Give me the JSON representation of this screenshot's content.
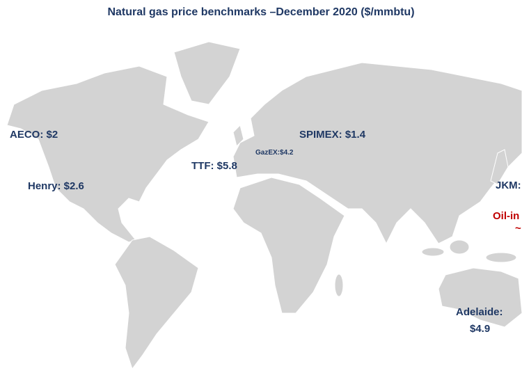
{
  "title": "Natural gas price benchmarks –December 2020 ($/mmbtu)",
  "labels": [
    "AECO: $2",
    "Henry: $2.6",
    "TTF: $5.8",
    "GazEX:$4.2",
    "SPIMEX: $1.4",
    "JKM:",
    "Oil-in",
    "~",
    "Adelaide:",
    "$4.9"
  ]
}
